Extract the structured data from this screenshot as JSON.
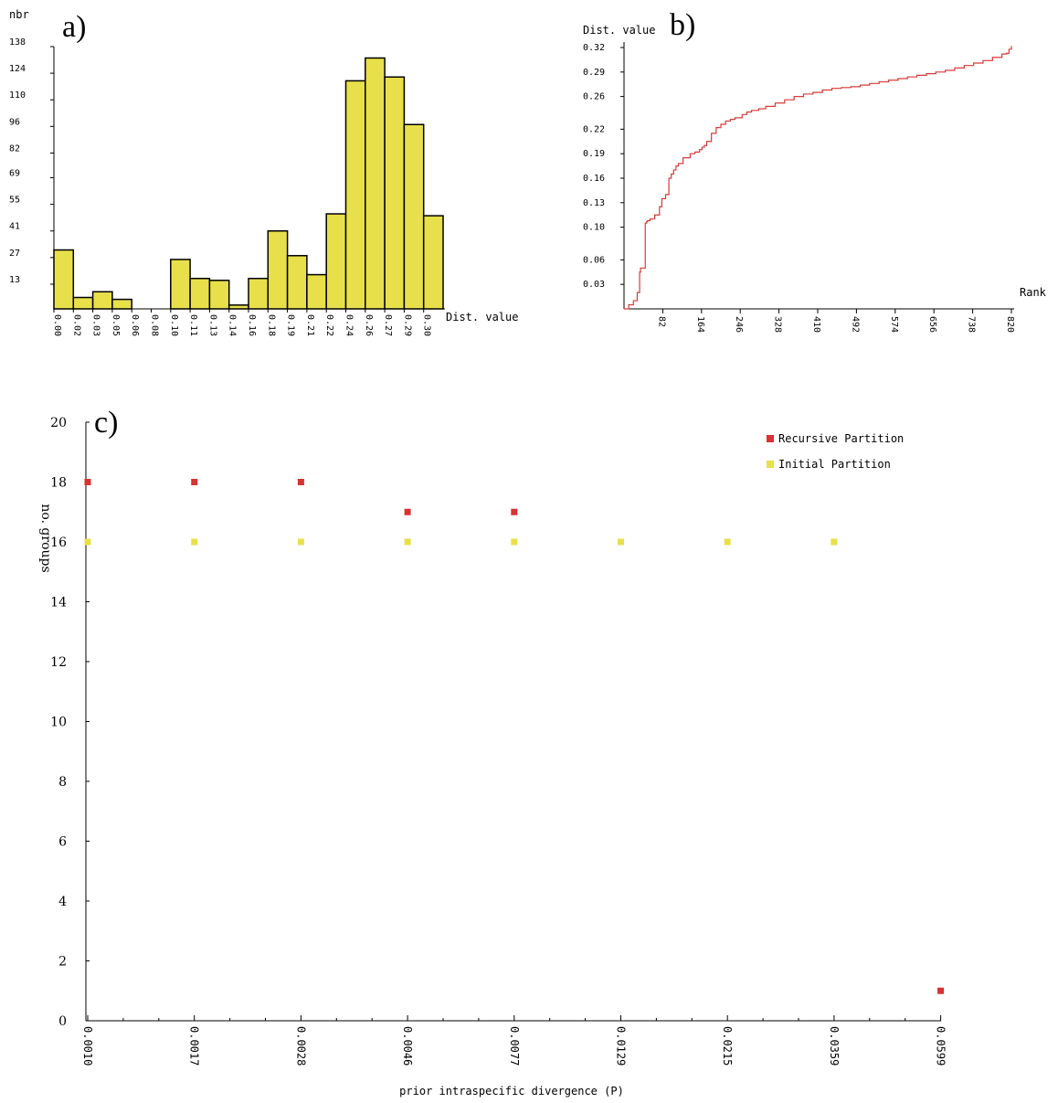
{
  "panels": {
    "a": "a)",
    "b": "b)",
    "c": "c)"
  },
  "chart_data": [
    {
      "type": "bar",
      "panel": "a)",
      "ylabel": "nbr",
      "xlabel": "Dist. value",
      "yticks": [
        "13",
        "27",
        "41",
        "55",
        "69",
        "82",
        "96",
        "110",
        "124",
        "138"
      ],
      "categories": [
        "0.00",
        "0.02",
        "0.03",
        "0.05",
        "0.06",
        "0.08",
        "0.10",
        "0.11",
        "0.13",
        "0.14",
        "0.16",
        "0.18",
        "0.19",
        "0.21",
        "0.22",
        "0.24",
        "0.26",
        "0.27",
        "0.29",
        "0.30"
      ],
      "values": [
        31,
        6,
        9,
        5,
        0,
        0,
        26,
        16,
        15,
        2,
        16,
        41,
        28,
        18,
        50,
        120,
        132,
        122,
        97,
        49
      ],
      "ylim": [
        0,
        138
      ],
      "bar_color": "#e8e04a",
      "grid": false
    },
    {
      "type": "line",
      "panel": "b)",
      "ylabel": "Dist. value",
      "xlabel": "Rank",
      "yticks": [
        "0.03",
        "0.06",
        "0.10",
        "0.13",
        "0.16",
        "0.19",
        "0.22",
        "0.26",
        "0.29",
        "0.32"
      ],
      "xticks": [
        "82",
        "164",
        "246",
        "328",
        "410",
        "492",
        "574",
        "656",
        "738",
        "820"
      ],
      "xlim": [
        0,
        820
      ],
      "ylim": [
        0,
        0.32
      ],
      "series": [
        {
          "color": "#d93a3a",
          "x": [
            0,
            10,
            20,
            28,
            33,
            35,
            45,
            48,
            50,
            55,
            65,
            75,
            80,
            88,
            95,
            100,
            105,
            110,
            115,
            125,
            140,
            150,
            160,
            165,
            170,
            175,
            185,
            195,
            205,
            215,
            225,
            235,
            250,
            260,
            270,
            285,
            300,
            320,
            340,
            360,
            380,
            400,
            420,
            440,
            460,
            480,
            500,
            520,
            540,
            560,
            580,
            600,
            620,
            640,
            660,
            680,
            700,
            720,
            740,
            760,
            780,
            800,
            810,
            815,
            820
          ],
          "y": [
            0.0,
            0.005,
            0.01,
            0.02,
            0.045,
            0.05,
            0.105,
            0.107,
            0.108,
            0.11,
            0.115,
            0.125,
            0.135,
            0.14,
            0.16,
            0.165,
            0.17,
            0.175,
            0.178,
            0.185,
            0.19,
            0.192,
            0.195,
            0.198,
            0.2,
            0.205,
            0.215,
            0.222,
            0.226,
            0.23,
            0.232,
            0.234,
            0.238,
            0.241,
            0.243,
            0.245,
            0.248,
            0.252,
            0.256,
            0.26,
            0.263,
            0.265,
            0.268,
            0.27,
            0.271,
            0.272,
            0.274,
            0.276,
            0.278,
            0.28,
            0.282,
            0.284,
            0.286,
            0.288,
            0.29,
            0.292,
            0.295,
            0.298,
            0.301,
            0.304,
            0.308,
            0.312,
            0.313,
            0.318,
            0.322
          ]
        }
      ]
    },
    {
      "type": "scatter",
      "panel": "c)",
      "ylabel": "no. groups",
      "xlabel": "prior intraspecific divergence (P)",
      "categories": [
        "0.0010",
        "0.0017",
        "0.0028",
        "0.0046",
        "0.0077",
        "0.0129",
        "0.0215",
        "0.0359",
        "0.0599"
      ],
      "yticks": [
        "0",
        "2",
        "4",
        "6",
        "8",
        "10",
        "12",
        "14",
        "16",
        "18",
        "20"
      ],
      "ylim": [
        0,
        20
      ],
      "legend_position": "top-right",
      "series": [
        {
          "name": "Recursive Partition",
          "color": "#d83232",
          "values": [
            18,
            18,
            18,
            17,
            17,
            null,
            null,
            null,
            1
          ]
        },
        {
          "name": "Initial Partition",
          "color": "#e8e04a",
          "values": [
            16,
            16,
            16,
            16,
            16,
            16,
            16,
            16,
            null
          ]
        }
      ]
    }
  ]
}
